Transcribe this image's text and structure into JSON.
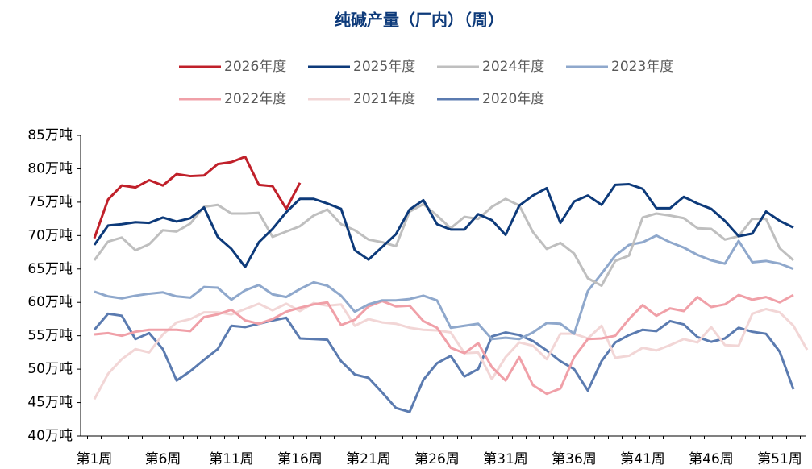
{
  "chart_data": {
    "type": "line",
    "title": "纯碱产量（厂内）（周）",
    "categories": [
      "第1周",
      null,
      null,
      null,
      null,
      "第6周",
      null,
      null,
      null,
      null,
      "第11周",
      null,
      null,
      null,
      null,
      "第16周",
      null,
      null,
      null,
      null,
      "第21周",
      null,
      null,
      null,
      null,
      "第26周",
      null,
      null,
      null,
      null,
      "第31周",
      null,
      null,
      null,
      null,
      "第36周",
      null,
      null,
      null,
      null,
      "第41周",
      null,
      null,
      null,
      null,
      "第46周",
      null,
      null,
      null,
      null,
      "第51周",
      null,
      null
    ],
    "ylim": [
      40,
      85
    ],
    "yticks": [
      {
        "value": 40,
        "label": "40万吨"
      },
      {
        "value": 45,
        "label": "45万吨"
      },
      {
        "value": 50,
        "label": "50万吨"
      },
      {
        "value": 55,
        "label": "55万吨"
      },
      {
        "value": 60,
        "label": "60万吨"
      },
      {
        "value": 65,
        "label": "65万吨"
      },
      {
        "value": 70,
        "label": "70万吨"
      },
      {
        "value": 75,
        "label": "75万吨"
      },
      {
        "value": 80,
        "label": "80万吨"
      },
      {
        "value": 85,
        "label": "85万吨"
      }
    ],
    "grid": false,
    "series": [
      {
        "name": "2026年度",
        "color": "#c0202a",
        "values": [
          69.6,
          75.4,
          77.5,
          77.2,
          78.3,
          77.5,
          79.2,
          78.9,
          79.0,
          80.7,
          81.0,
          81.8,
          77.6,
          77.4,
          74.0,
          77.9,
          null,
          null,
          null,
          null,
          null,
          null,
          null,
          null,
          null,
          null,
          null,
          null,
          null,
          null,
          null,
          null,
          null,
          null,
          null,
          null,
          null,
          null,
          null,
          null,
          null,
          null,
          null,
          null,
          null,
          null,
          null,
          null,
          null,
          null,
          null,
          null,
          null
        ]
      },
      {
        "name": "2025年度",
        "color": "#0d3a7a",
        "values": [
          68.6,
          71.5,
          71.7,
          72.0,
          71.9,
          72.7,
          72.1,
          72.6,
          74.2,
          69.8,
          68.0,
          65.3,
          69.0,
          71.0,
          73.5,
          75.5,
          75.5,
          74.8,
          74.0,
          67.8,
          66.4,
          68.3,
          70.2,
          73.9,
          75.3,
          71.7,
          70.9,
          70.9,
          73.2,
          72.3,
          70.1,
          74.5,
          76.0,
          77.1,
          71.9,
          75.1,
          76.0,
          74.6,
          77.6,
          77.7,
          77.0,
          74.1,
          74.1,
          75.8,
          74.8,
          74.0,
          72.2,
          69.9,
          70.3,
          73.6,
          72.2,
          71.2,
          null
        ]
      },
      {
        "name": "2024年度",
        "color": "#bfbfbf",
        "values": [
          66.3,
          69.1,
          69.7,
          67.8,
          68.7,
          70.8,
          70.6,
          71.8,
          74.3,
          74.6,
          73.3,
          73.3,
          73.4,
          69.8,
          70.6,
          71.4,
          73.0,
          73.9,
          71.7,
          70.8,
          69.4,
          69.0,
          68.4,
          73.6,
          74.7,
          73.0,
          71.1,
          72.8,
          72.5,
          74.3,
          75.5,
          74.5,
          70.5,
          68.0,
          68.9,
          67.3,
          63.6,
          62.5,
          66.2,
          67.0,
          72.7,
          73.3,
          73.0,
          72.6,
          71.1,
          71.0,
          69.4,
          69.9,
          72.5,
          72.5,
          68.1,
          66.3,
          null
        ]
      },
      {
        "name": "2023年度",
        "color": "#8fa8cc",
        "values": [
          61.6,
          60.9,
          60.6,
          61.0,
          61.3,
          61.5,
          60.9,
          60.7,
          62.3,
          62.2,
          60.4,
          61.8,
          62.6,
          61.2,
          60.8,
          62.0,
          63.0,
          62.5,
          61.0,
          58.6,
          59.7,
          60.3,
          60.3,
          60.5,
          61.0,
          60.3,
          56.2,
          56.5,
          56.8,
          54.5,
          54.7,
          54.5,
          55.5,
          56.9,
          56.8,
          55.3,
          61.7,
          64.3,
          67.0,
          68.6,
          69.0,
          70.0,
          69.0,
          68.2,
          67.1,
          66.3,
          65.8,
          69.2,
          66.0,
          66.2,
          65.8,
          65.0,
          null
        ]
      },
      {
        "name": "2022年度",
        "color": "#f0a0a8",
        "values": [
          55.2,
          55.4,
          55.0,
          55.6,
          55.9,
          55.9,
          55.9,
          55.7,
          57.8,
          58.2,
          58.9,
          57.3,
          56.8,
          57.5,
          58.6,
          59.2,
          59.7,
          60.0,
          56.6,
          57.4,
          59.4,
          60.2,
          59.4,
          59.5,
          57.2,
          56.2,
          53.2,
          52.4,
          53.9,
          50.3,
          48.3,
          51.8,
          47.6,
          46.3,
          47.1,
          51.8,
          54.5,
          54.6,
          55.0,
          57.5,
          59.6,
          58.0,
          59.1,
          58.7,
          60.8,
          59.3,
          59.7,
          61.1,
          60.4,
          60.8,
          60.0,
          61.1,
          null
        ]
      },
      {
        "name": "2021年度",
        "color": "#f2d6d6",
        "values": [
          45.5,
          49.3,
          51.5,
          53.0,
          52.5,
          55.2,
          57.0,
          57.5,
          58.5,
          58.5,
          58.2,
          59.0,
          59.8,
          58.8,
          59.8,
          58.7,
          59.9,
          59.5,
          59.7,
          56.5,
          57.5,
          57.0,
          56.8,
          56.2,
          55.9,
          55.8,
          55.5,
          52.4,
          52.5,
          48.5,
          51.8,
          54.0,
          53.5,
          51.5,
          55.3,
          55.3,
          54.6,
          56.5,
          51.7,
          52.0,
          53.2,
          52.8,
          53.6,
          54.5,
          54.0,
          56.3,
          53.6,
          53.5,
          58.3,
          59.0,
          58.5,
          56.5,
          52.9
        ]
      },
      {
        "name": "2020年度",
        "color": "#5b7bb0",
        "values": [
          55.9,
          58.3,
          58.0,
          54.5,
          55.4,
          53.0,
          48.3,
          49.7,
          51.4,
          53.0,
          56.5,
          56.3,
          56.8,
          57.3,
          57.7,
          54.6,
          54.5,
          54.4,
          51.2,
          49.2,
          48.7,
          46.5,
          44.2,
          43.6,
          48.4,
          50.9,
          52.0,
          48.9,
          50.0,
          54.9,
          55.5,
          55.1,
          54.2,
          52.8,
          51.2,
          50.0,
          46.8,
          51.2,
          54.0,
          55.1,
          55.9,
          55.7,
          57.2,
          56.7,
          54.8,
          54.1,
          54.6,
          56.2,
          55.6,
          55.3,
          52.6,
          47.0,
          null
        ]
      }
    ]
  }
}
